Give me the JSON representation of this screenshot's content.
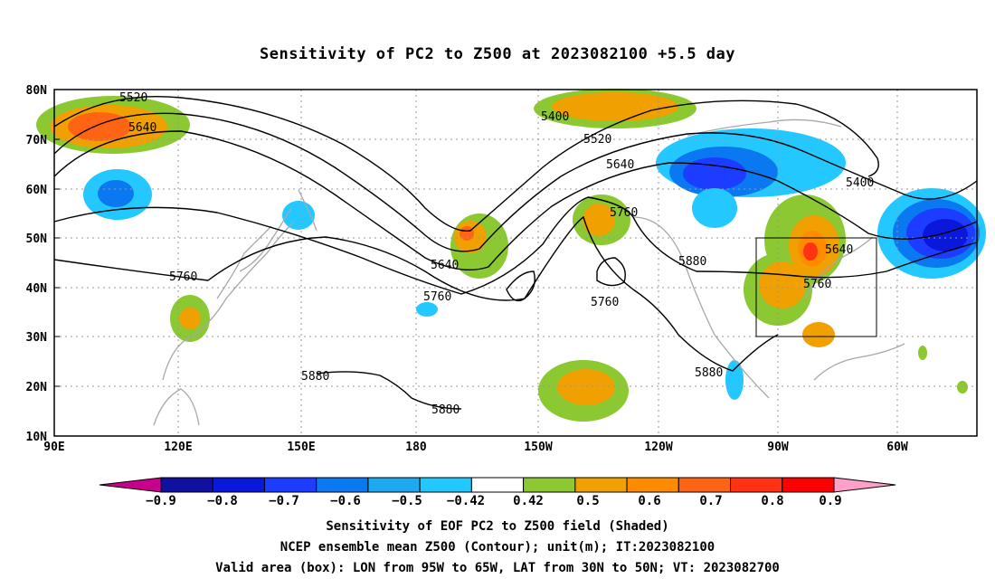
{
  "title": "Sensitivity of PC2 to Z500 at 2023082100 +5.5 day",
  "map": {
    "lat_labels": [
      "80N",
      "70N",
      "60N",
      "50N",
      "40N",
      "30N",
      "20N",
      "10N"
    ],
    "lon_labels": [
      "90E",
      "120E",
      "150E",
      "180",
      "150W",
      "120W",
      "90W",
      "60W"
    ],
    "valid_box": {
      "lon_west": "95W",
      "lon_east": "65W",
      "lat_south": "30N",
      "lat_north": "50N"
    }
  },
  "contour_labels": [
    {
      "id": "c5520a",
      "text": "5520"
    },
    {
      "id": "c5640a",
      "text": "5640"
    },
    {
      "id": "c5400a",
      "text": "5400"
    },
    {
      "id": "c5520b",
      "text": "5520"
    },
    {
      "id": "c5640b",
      "text": "5640"
    },
    {
      "id": "c5400b",
      "text": "5400"
    },
    {
      "id": "c5760a",
      "text": "5760"
    },
    {
      "id": "c5640c",
      "text": "5640"
    },
    {
      "id": "c5760b",
      "text": "5760"
    },
    {
      "id": "c5760c",
      "text": "5760"
    },
    {
      "id": "c5760d",
      "text": "5760"
    },
    {
      "id": "c5880a",
      "text": "5880"
    },
    {
      "id": "c5640d",
      "text": "5640"
    },
    {
      "id": "c5760e",
      "text": "5760"
    },
    {
      "id": "c5880b",
      "text": "5880"
    },
    {
      "id": "c5880c",
      "text": "5880"
    },
    {
      "id": "c5880d",
      "text": "5880"
    }
  ],
  "colorbar": {
    "colors": [
      "#c8008c",
      "#1010a0",
      "#0a18dc",
      "#1c3cff",
      "#0a78f0",
      "#1eaaf0",
      "#22c8ff",
      "#ffffff",
      "#8cc832",
      "#f0a000",
      "#ff8c00",
      "#ff6414",
      "#ff3214",
      "#ff0000",
      "#ffa0c8"
    ],
    "labels": [
      "−0.9",
      "−0.8",
      "−0.7",
      "−0.6",
      "−0.5",
      "−0.42",
      "0.42",
      "0.5",
      "0.6",
      "0.7",
      "0.8",
      "0.9"
    ]
  },
  "captions": {
    "line1": "Sensitivity of EOF PC2 to Z500 field (Shaded)",
    "line2": "NCEP ensemble mean Z500 (Contour); unit(m); IT:2023082100",
    "line3": "Valid area (box): LON from 95W to 65W, LAT from 30N to 50N; VT: 2023082700"
  }
}
